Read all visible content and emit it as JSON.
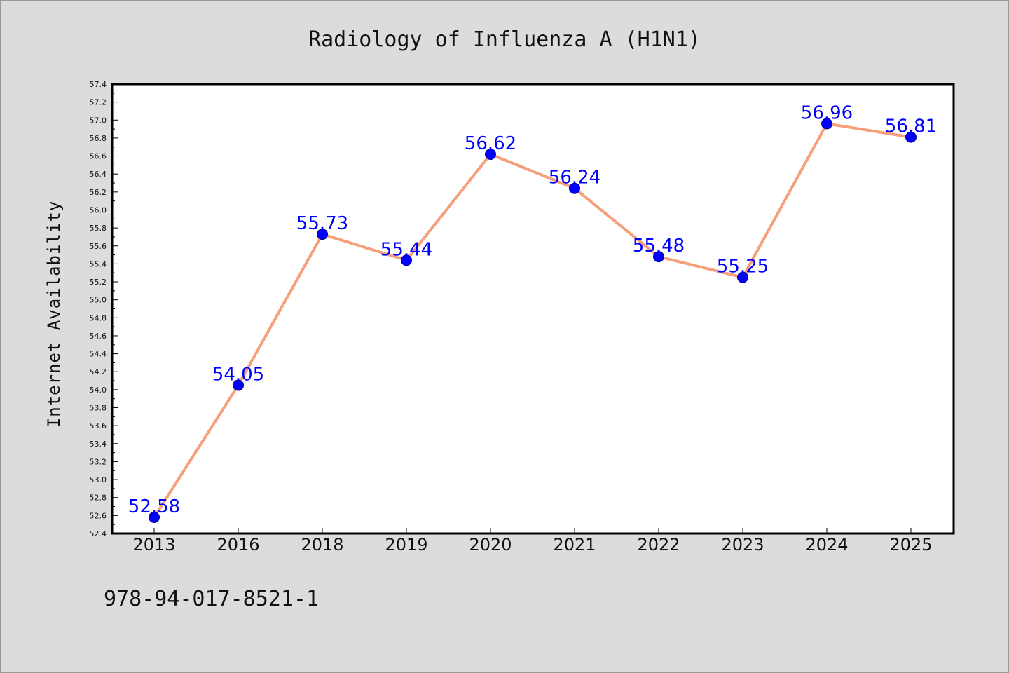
{
  "footer_code": "978-94-017-8521-1",
  "chart_data": {
    "type": "line",
    "title": "Radiology of Influenza A (H1N1)",
    "xlabel": "",
    "ylabel": "Internet Availability",
    "categories": [
      "2013",
      "2016",
      "2018",
      "2019",
      "2020",
      "2021",
      "2022",
      "2023",
      "2024",
      "2025"
    ],
    "series": [
      {
        "values": [
          52.58,
          54.05,
          55.73,
          55.44,
          56.62,
          56.24,
          55.48,
          55.25,
          56.96,
          56.81
        ],
        "data_labels": [
          "52.58",
          "54.05",
          "55.73",
          "55.44",
          "56.62",
          "56.24",
          "55.48",
          "55.25",
          "56.96",
          "56.81"
        ],
        "line_color": "#f5a07a",
        "marker_color": "#0000ff"
      }
    ],
    "ylim": [
      52.4,
      57.4
    ],
    "yticks": [
      "52.4",
      "52.6",
      "52.8",
      "53.0",
      "53.2",
      "53.4",
      "53.6",
      "53.8",
      "54.0",
      "54.2",
      "54.4",
      "54.6",
      "54.8",
      "55.0",
      "55.2",
      "55.4",
      "55.6",
      "55.8",
      "56.0",
      "56.2",
      "56.4",
      "56.6",
      "56.8",
      "57.0",
      "57.2",
      "57.4"
    ],
    "grid": false,
    "legend": "none",
    "colors": {
      "background": "#dcdcdc",
      "plot_area": "#ffffff",
      "label_color": "#0000ff"
    }
  }
}
